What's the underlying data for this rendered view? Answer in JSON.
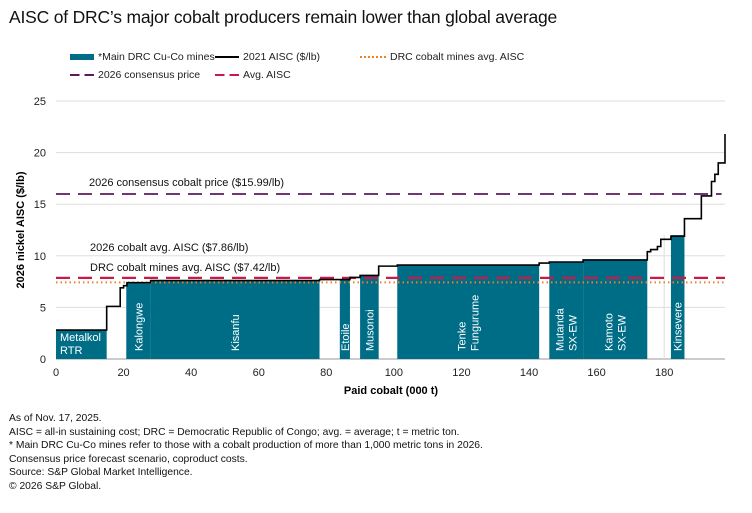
{
  "title": "AISC of DRC’s major cobalt producers remain lower than global average",
  "legend": [
    {
      "label": "*Main DRC Cu-Co mines",
      "style": "bar",
      "color": "#006d87"
    },
    {
      "label": "2021 AISC ($/lb)",
      "style": "solid",
      "color": "#000000"
    },
    {
      "label": "DRC cobalt mines avg. AISC",
      "style": "dotted",
      "color": "#f0831e"
    },
    {
      "label": "2026 consensus price",
      "style": "dashed",
      "color": "#5c1a5e"
    },
    {
      "label": "Avg. AISC",
      "style": "dashed",
      "color": "#c8194b"
    }
  ],
  "chart_data": {
    "type": "bar",
    "xlabel": "Paid cobalt (000 t)",
    "ylabel": "2026 nickel AISC ($/lb)",
    "xlim": [
      0,
      198
    ],
    "ylim": [
      0,
      25
    ],
    "xticks": [
      0,
      20,
      40,
      60,
      80,
      100,
      120,
      140,
      160,
      180
    ],
    "yticks": [
      0,
      5,
      10,
      15,
      20,
      25
    ],
    "grid": "horizontal",
    "bar_color": "#006d87",
    "bars": [
      {
        "label": "Metalkol RTR",
        "x0": 0,
        "x1": 15,
        "value": 2.8
      },
      {
        "label": "Kalongwe",
        "x0": 20.8,
        "x1": 28,
        "value": 7.4
      },
      {
        "label": "Kisanfu",
        "x0": 28,
        "x1": 78,
        "value": 7.6
      },
      {
        "label": "Etoile",
        "x0": 84,
        "x1": 87,
        "value": 7.7
      },
      {
        "label": "Musonoi",
        "x0": 90,
        "x1": 95.5,
        "value": 8.1
      },
      {
        "label": "Tenke Fungurume",
        "x0": 101,
        "x1": 143,
        "value": 9.1
      },
      {
        "label": "Mutanda SX-EW",
        "x0": 146,
        "x1": 156,
        "value": 9.4
      },
      {
        "label": "Kamoto SX-EW",
        "x0": 156,
        "x1": 175,
        "value": 9.6
      },
      {
        "label": "Kinsevere",
        "x0": 182,
        "x1": 186,
        "value": 12.0
      }
    ],
    "cost_curve": {
      "name": "2021 AISC ($/lb)",
      "steps": [
        [
          0,
          2.8
        ],
        [
          15,
          5.1
        ],
        [
          19,
          6.9
        ],
        [
          20,
          7.1
        ],
        [
          21,
          7.4
        ],
        [
          28,
          7.6
        ],
        [
          78,
          7.7
        ],
        [
          87,
          7.9
        ],
        [
          90,
          8.1
        ],
        [
          95.5,
          9.0
        ],
        [
          101,
          9.1
        ],
        [
          143,
          9.3
        ],
        [
          146,
          9.4
        ],
        [
          156,
          9.6
        ],
        [
          175,
          10.4
        ],
        [
          176,
          10.6
        ],
        [
          178,
          10.9
        ],
        [
          179,
          11.6
        ],
        [
          182,
          11.9
        ],
        [
          186,
          13.6
        ],
        [
          191,
          15.8
        ],
        [
          194,
          17.2
        ],
        [
          195,
          17.9
        ],
        [
          196,
          19.0
        ],
        [
          198,
          21.8
        ]
      ]
    },
    "reference_lines": [
      {
        "label": "2026 consensus cobalt price ($15.99/lb)",
        "value": 15.99,
        "color": "#5c1a5e",
        "style": "dashed"
      },
      {
        "label": "2026 cobalt avg. AISC ($7.86/lb)",
        "value": 7.86,
        "color": "#c8194b",
        "style": "dashed"
      },
      {
        "label": "DRC cobalt mines avg. AISC ($7.42/lb)",
        "value": 7.42,
        "color": "#f0831e",
        "style": "dotted"
      }
    ]
  },
  "notes": [
    "As of Nov. 17, 2025.",
    "AISC = all-in sustaining cost; DRC = Democratic Republic of Congo; avg. = average; t = metric ton.",
    "* Main DRC Cu-Co mines refer to those with a cobalt production of more than 1,000 metric tons in 2026.",
    "Consensus price forecast scenario, coproduct costs.",
    "Source: S&P Global Market Intelligence.",
    "© 2026 S&P Global."
  ]
}
